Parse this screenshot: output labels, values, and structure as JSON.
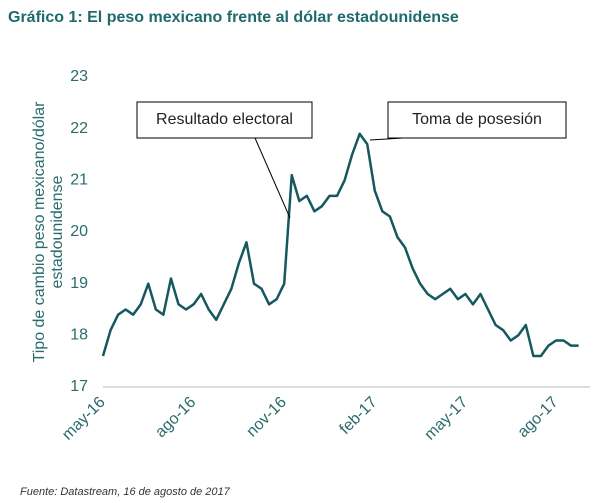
{
  "chart_data": {
    "type": "line",
    "title": "Gráfico 1: El peso mexicano frente al dólar estadounidense",
    "y_label": [
      "Tipo de cambio peso mexicano/dólar",
      "estadounidense"
    ],
    "source": "Fuente: Datastream, 16 de agosto de 2017",
    "categories": [
      "may-16",
      null,
      null,
      null,
      null,
      null,
      null,
      null,
      null,
      null,
      null,
      null,
      "ago-16",
      null,
      null,
      null,
      null,
      null,
      null,
      null,
      null,
      null,
      null,
      null,
      "nov-16",
      null,
      null,
      null,
      null,
      null,
      null,
      null,
      null,
      null,
      null,
      null,
      "feb-17",
      null,
      null,
      null,
      null,
      null,
      null,
      null,
      null,
      null,
      null,
      null,
      "may-17",
      null,
      null,
      null,
      null,
      null,
      null,
      null,
      null,
      null,
      null,
      null,
      "ago-17",
      null,
      null,
      null
    ],
    "series": [
      {
        "color": "#15585e",
        "values": [
          17.6,
          18.1,
          18.4,
          18.5,
          18.4,
          18.6,
          19.0,
          18.5,
          18.4,
          19.1,
          18.6,
          18.5,
          18.6,
          18.8,
          18.5,
          18.3,
          18.6,
          18.9,
          19.4,
          19.8,
          19.0,
          18.9,
          18.6,
          18.7,
          19.0,
          21.1,
          20.6,
          20.7,
          20.4,
          20.5,
          20.7,
          20.7,
          21.0,
          21.5,
          21.9,
          21.7,
          20.8,
          20.4,
          20.3,
          19.9,
          19.7,
          19.3,
          19.0,
          18.8,
          18.7,
          18.8,
          18.9,
          18.7,
          18.8,
          18.6,
          18.8,
          18.5,
          18.2,
          18.1,
          17.9,
          18.0,
          18.2,
          17.6,
          17.6,
          17.8,
          17.9,
          17.9,
          17.8,
          17.8
        ]
      }
    ],
    "ylim": [
      17,
      23
    ],
    "yticks": [
      17,
      18,
      19,
      20,
      21,
      22,
      23
    ],
    "annotations": [
      {
        "text": "Resultado electoral",
        "index": 25
      },
      {
        "text": "Toma de posesión",
        "index": 34
      }
    ]
  }
}
